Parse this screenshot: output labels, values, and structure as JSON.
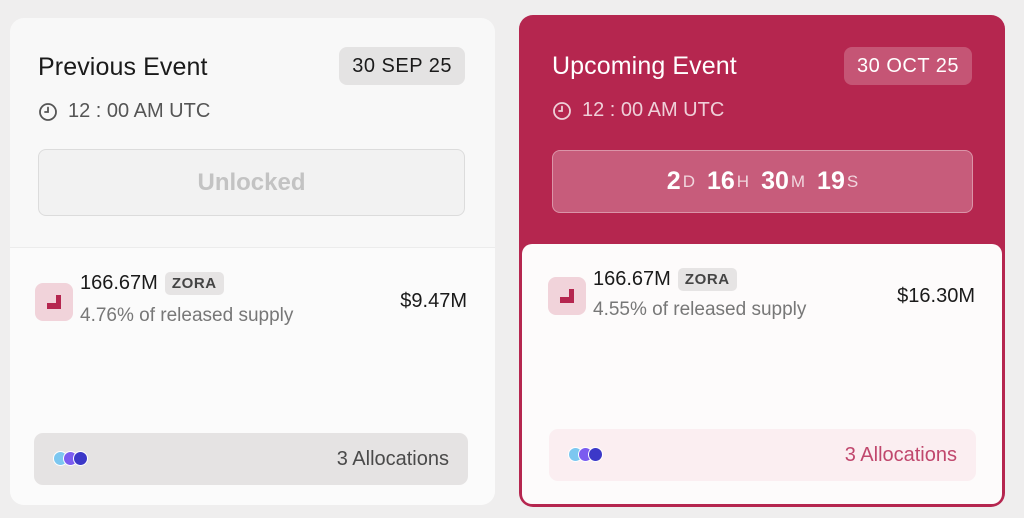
{
  "previous_event": {
    "title": "Previous Event",
    "date": "30 SEP 25",
    "time": "12 : 00 AM UTC",
    "status": "Unlocked",
    "amount": "166.67M",
    "ticker": "ZORA",
    "supply_text": "4.76% of released supply",
    "usd_value": "$9.47M",
    "allocations": "3 Allocations"
  },
  "upcoming_event": {
    "title": "Upcoming Event",
    "date": "30 OCT 25",
    "time": "12 : 00 AM UTC",
    "countdown": {
      "days": "2",
      "days_unit": "D",
      "hours": "16",
      "hours_unit": "H",
      "minutes": "30",
      "minutes_unit": "M",
      "seconds": "19",
      "seconds_unit": "S"
    },
    "amount": "166.67M",
    "ticker": "ZORA",
    "supply_text": "4.55% of released supply",
    "usd_value": "$16.30M",
    "allocations": "3 Allocations"
  },
  "icons": {
    "clock": "clock-icon",
    "token": "zora-token-icon",
    "allocation_avatars": "allocation-avatars-icon"
  },
  "colors": {
    "accent": "#b5264f",
    "allocation_text": "#c0476d"
  }
}
